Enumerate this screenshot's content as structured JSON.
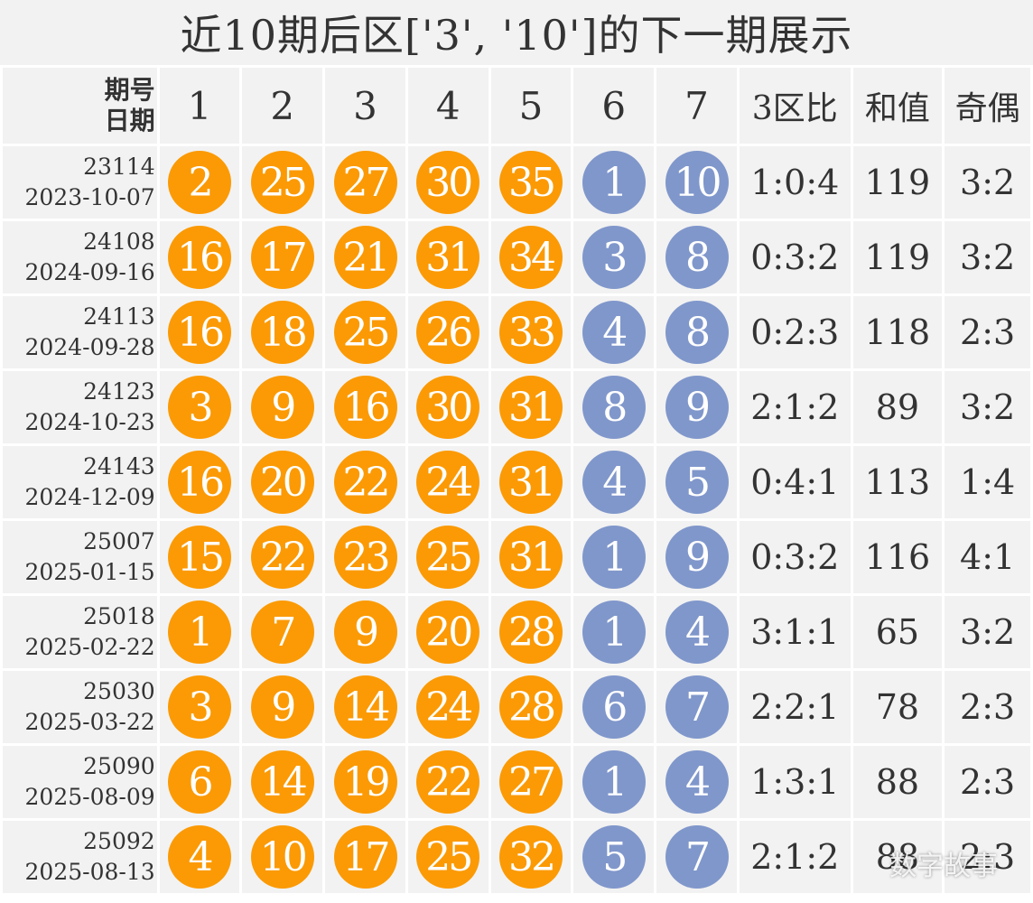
{
  "title": "近10期后区['3', '10']的下一期展示",
  "colors": {
    "front_ball": "#fb9a04",
    "back_ball": "#8097cb",
    "cell_bg": "#f2f2f2"
  },
  "header": {
    "corner_top": "期号",
    "corner_bottom": "日期",
    "cols": [
      "1",
      "2",
      "3",
      "4",
      "5",
      "6",
      "7",
      "3区比",
      "和值",
      "奇偶"
    ]
  },
  "rows": [
    {
      "issue": "23114",
      "date": "2023-10-07",
      "front": [
        "2",
        "25",
        "27",
        "30",
        "35"
      ],
      "back": [
        "1",
        "10"
      ],
      "ratio": "1:0:4",
      "sum": "119",
      "odd_even": "3:2"
    },
    {
      "issue": "24108",
      "date": "2024-09-16",
      "front": [
        "16",
        "17",
        "21",
        "31",
        "34"
      ],
      "back": [
        "3",
        "8"
      ],
      "ratio": "0:3:2",
      "sum": "119",
      "odd_even": "3:2"
    },
    {
      "issue": "24113",
      "date": "2024-09-28",
      "front": [
        "16",
        "18",
        "25",
        "26",
        "33"
      ],
      "back": [
        "4",
        "8"
      ],
      "ratio": "0:2:3",
      "sum": "118",
      "odd_even": "2:3"
    },
    {
      "issue": "24123",
      "date": "2024-10-23",
      "front": [
        "3",
        "9",
        "16",
        "30",
        "31"
      ],
      "back": [
        "8",
        "9"
      ],
      "ratio": "2:1:2",
      "sum": "89",
      "odd_even": "3:2"
    },
    {
      "issue": "24143",
      "date": "2024-12-09",
      "front": [
        "16",
        "20",
        "22",
        "24",
        "31"
      ],
      "back": [
        "4",
        "5"
      ],
      "ratio": "0:4:1",
      "sum": "113",
      "odd_even": "1:4"
    },
    {
      "issue": "25007",
      "date": "2025-01-15",
      "front": [
        "15",
        "22",
        "23",
        "25",
        "31"
      ],
      "back": [
        "1",
        "9"
      ],
      "ratio": "0:3:2",
      "sum": "116",
      "odd_even": "4:1"
    },
    {
      "issue": "25018",
      "date": "2025-02-22",
      "front": [
        "1",
        "7",
        "9",
        "20",
        "28"
      ],
      "back": [
        "1",
        "4"
      ],
      "ratio": "3:1:1",
      "sum": "65",
      "odd_even": "3:2"
    },
    {
      "issue": "25030",
      "date": "2025-03-22",
      "front": [
        "3",
        "9",
        "14",
        "24",
        "28"
      ],
      "back": [
        "6",
        "7"
      ],
      "ratio": "2:2:1",
      "sum": "78",
      "odd_even": "2:3"
    },
    {
      "issue": "25090",
      "date": "2025-08-09",
      "front": [
        "6",
        "14",
        "19",
        "22",
        "27"
      ],
      "back": [
        "1",
        "4"
      ],
      "ratio": "1:3:1",
      "sum": "88",
      "odd_even": "2:3"
    },
    {
      "issue": "25092",
      "date": "2025-08-13",
      "front": [
        "4",
        "10",
        "17",
        "25",
        "32"
      ],
      "back": [
        "5",
        "7"
      ],
      "ratio": "2:1:2",
      "sum": "88",
      "odd_even": "2:3"
    }
  ],
  "watermark": "数字故事"
}
